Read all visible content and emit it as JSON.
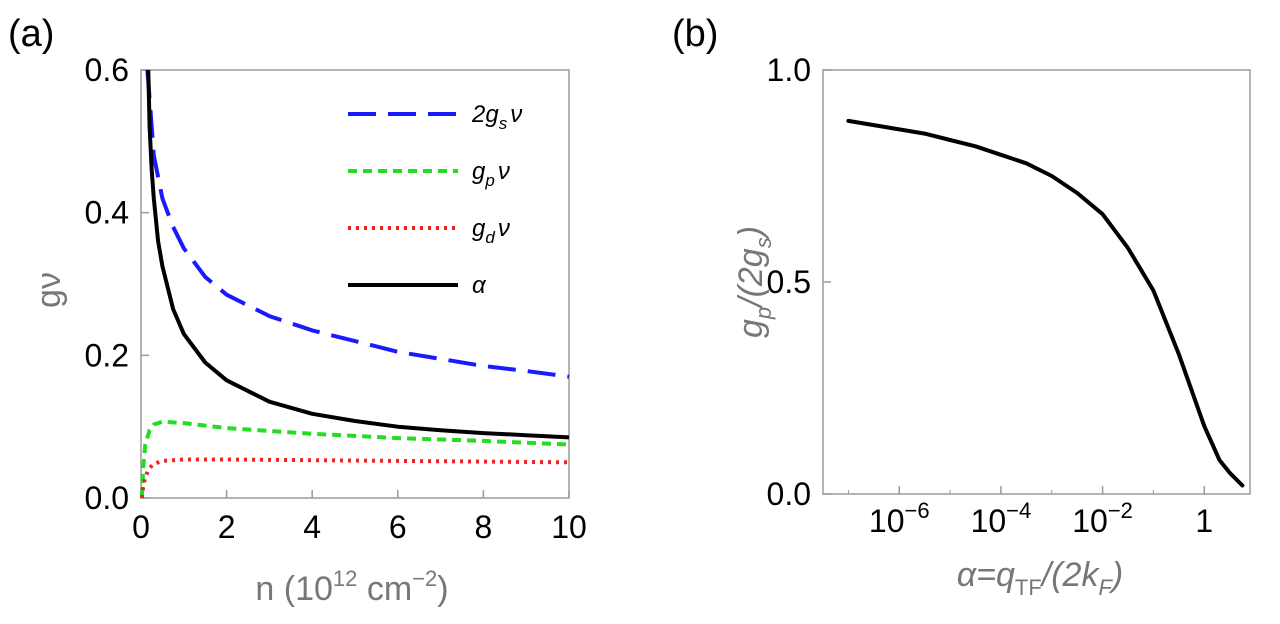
{
  "chart_data": [
    {
      "panel": "(a)",
      "type": "line",
      "xlabel": "n (10^12 cm^-2)",
      "xlabel_base": "n (10",
      "xlabel_exp1": "12",
      "xlabel_mid": " cm",
      "xlabel_exp2": "−2",
      "xlabel_end": ")",
      "ylabel": "gν",
      "xlim": [
        0,
        10
      ],
      "ylim": [
        0,
        0.6
      ],
      "xticks": [
        0,
        2,
        4,
        6,
        8,
        10
      ],
      "xtick_labels": [
        "0",
        "2",
        "4",
        "6",
        "8",
        "10"
      ],
      "yticks": [
        0.0,
        0.2,
        0.4,
        0.6
      ],
      "ytick_labels": [
        "0.0",
        "0.2",
        "0.4",
        "0.6"
      ],
      "legend_position": "top-right",
      "series": [
        {
          "name": "2g_s ν",
          "legend_base": "2g",
          "legend_sub": "s",
          "legend_end": "ν",
          "color": "#1a1aff",
          "dash": "28 12",
          "x": [
            0.15,
            0.2,
            0.3,
            0.5,
            0.75,
            1,
            1.5,
            2,
            3,
            4,
            5,
            6,
            7,
            8,
            9,
            10
          ],
          "y": [
            0.6,
            0.56,
            0.48,
            0.42,
            0.38,
            0.35,
            0.31,
            0.285,
            0.255,
            0.235,
            0.22,
            0.205,
            0.195,
            0.185,
            0.178,
            0.17
          ]
        },
        {
          "name": "g_p ν",
          "legend_base": "g",
          "legend_sub": "p",
          "legend_end": "ν",
          "color": "#22dd22",
          "dash": "9 6",
          "x": [
            0.02,
            0.05,
            0.1,
            0.2,
            0.3,
            0.5,
            1,
            2,
            3,
            4,
            6,
            8,
            10
          ],
          "y": [
            0.0,
            0.04,
            0.075,
            0.095,
            0.103,
            0.107,
            0.105,
            0.098,
            0.094,
            0.09,
            0.084,
            0.08,
            0.075
          ]
        },
        {
          "name": "g_d ν",
          "legend_base": "g",
          "legend_sub": "d",
          "legend_end": "ν",
          "color": "#ee2222",
          "dash": "3 5",
          "x": [
            0.02,
            0.05,
            0.1,
            0.2,
            0.3,
            0.5,
            1,
            2,
            4,
            6,
            8,
            10
          ],
          "y": [
            0.0,
            0.015,
            0.03,
            0.042,
            0.048,
            0.052,
            0.054,
            0.054,
            0.053,
            0.052,
            0.051,
            0.05
          ]
        },
        {
          "name": "α",
          "legend_base": "α",
          "legend_sub": "",
          "legend_end": "",
          "color": "#000000",
          "dash": "",
          "x": [
            0.17,
            0.2,
            0.25,
            0.3,
            0.4,
            0.5,
            0.75,
            1,
            1.5,
            2,
            3,
            4,
            5,
            6,
            7,
            8,
            9,
            10
          ],
          "y": [
            0.6,
            0.52,
            0.46,
            0.42,
            0.36,
            0.325,
            0.265,
            0.23,
            0.19,
            0.165,
            0.135,
            0.118,
            0.108,
            0.1,
            0.095,
            0.091,
            0.088,
            0.085
          ]
        }
      ]
    },
    {
      "panel": "(b)",
      "type": "line",
      "xscale": "log",
      "xlabel": "α = q_TF / (2k_F)",
      "xlabel_parts": {
        "a": "α=q",
        "a_sub": "TF",
        "b": "/(2k",
        "b_sub": "F",
        "c": ")"
      },
      "ylabel": "g_p / (2g_s)",
      "ylabel_parts": {
        "a": "g",
        "a_sub": "p",
        "b": "/(2g",
        "b_sub": "s",
        "c": ")"
      },
      "xlim_log10": [
        -7.5,
        0.9
      ],
      "ylim": [
        0,
        1
      ],
      "xticks_log10": [
        -6,
        -4,
        -2,
        0
      ],
      "xtick_labels": [
        {
          "base": "10",
          "exp": "−6"
        },
        {
          "base": "10",
          "exp": "−4"
        },
        {
          "base": "10",
          "exp": "−2"
        },
        {
          "base": "1",
          "exp": ""
        }
      ],
      "yticks": [
        0.0,
        0.5,
        1.0
      ],
      "ytick_labels": [
        "0.0",
        "0.5",
        "1.0"
      ],
      "series": [
        {
          "name": "g_p/(2g_s)",
          "color": "#000000",
          "x_log10": [
            -7,
            -6.5,
            -6,
            -5.5,
            -5,
            -4.5,
            -4,
            -3.5,
            -3,
            -2.5,
            -2,
            -1.5,
            -1,
            -0.5,
            0,
            0.3,
            0.5,
            0.75
          ],
          "y": [
            0.88,
            0.87,
            0.86,
            0.85,
            0.835,
            0.82,
            0.8,
            0.78,
            0.75,
            0.71,
            0.66,
            0.58,
            0.48,
            0.33,
            0.16,
            0.08,
            0.05,
            0.02
          ]
        }
      ]
    }
  ]
}
